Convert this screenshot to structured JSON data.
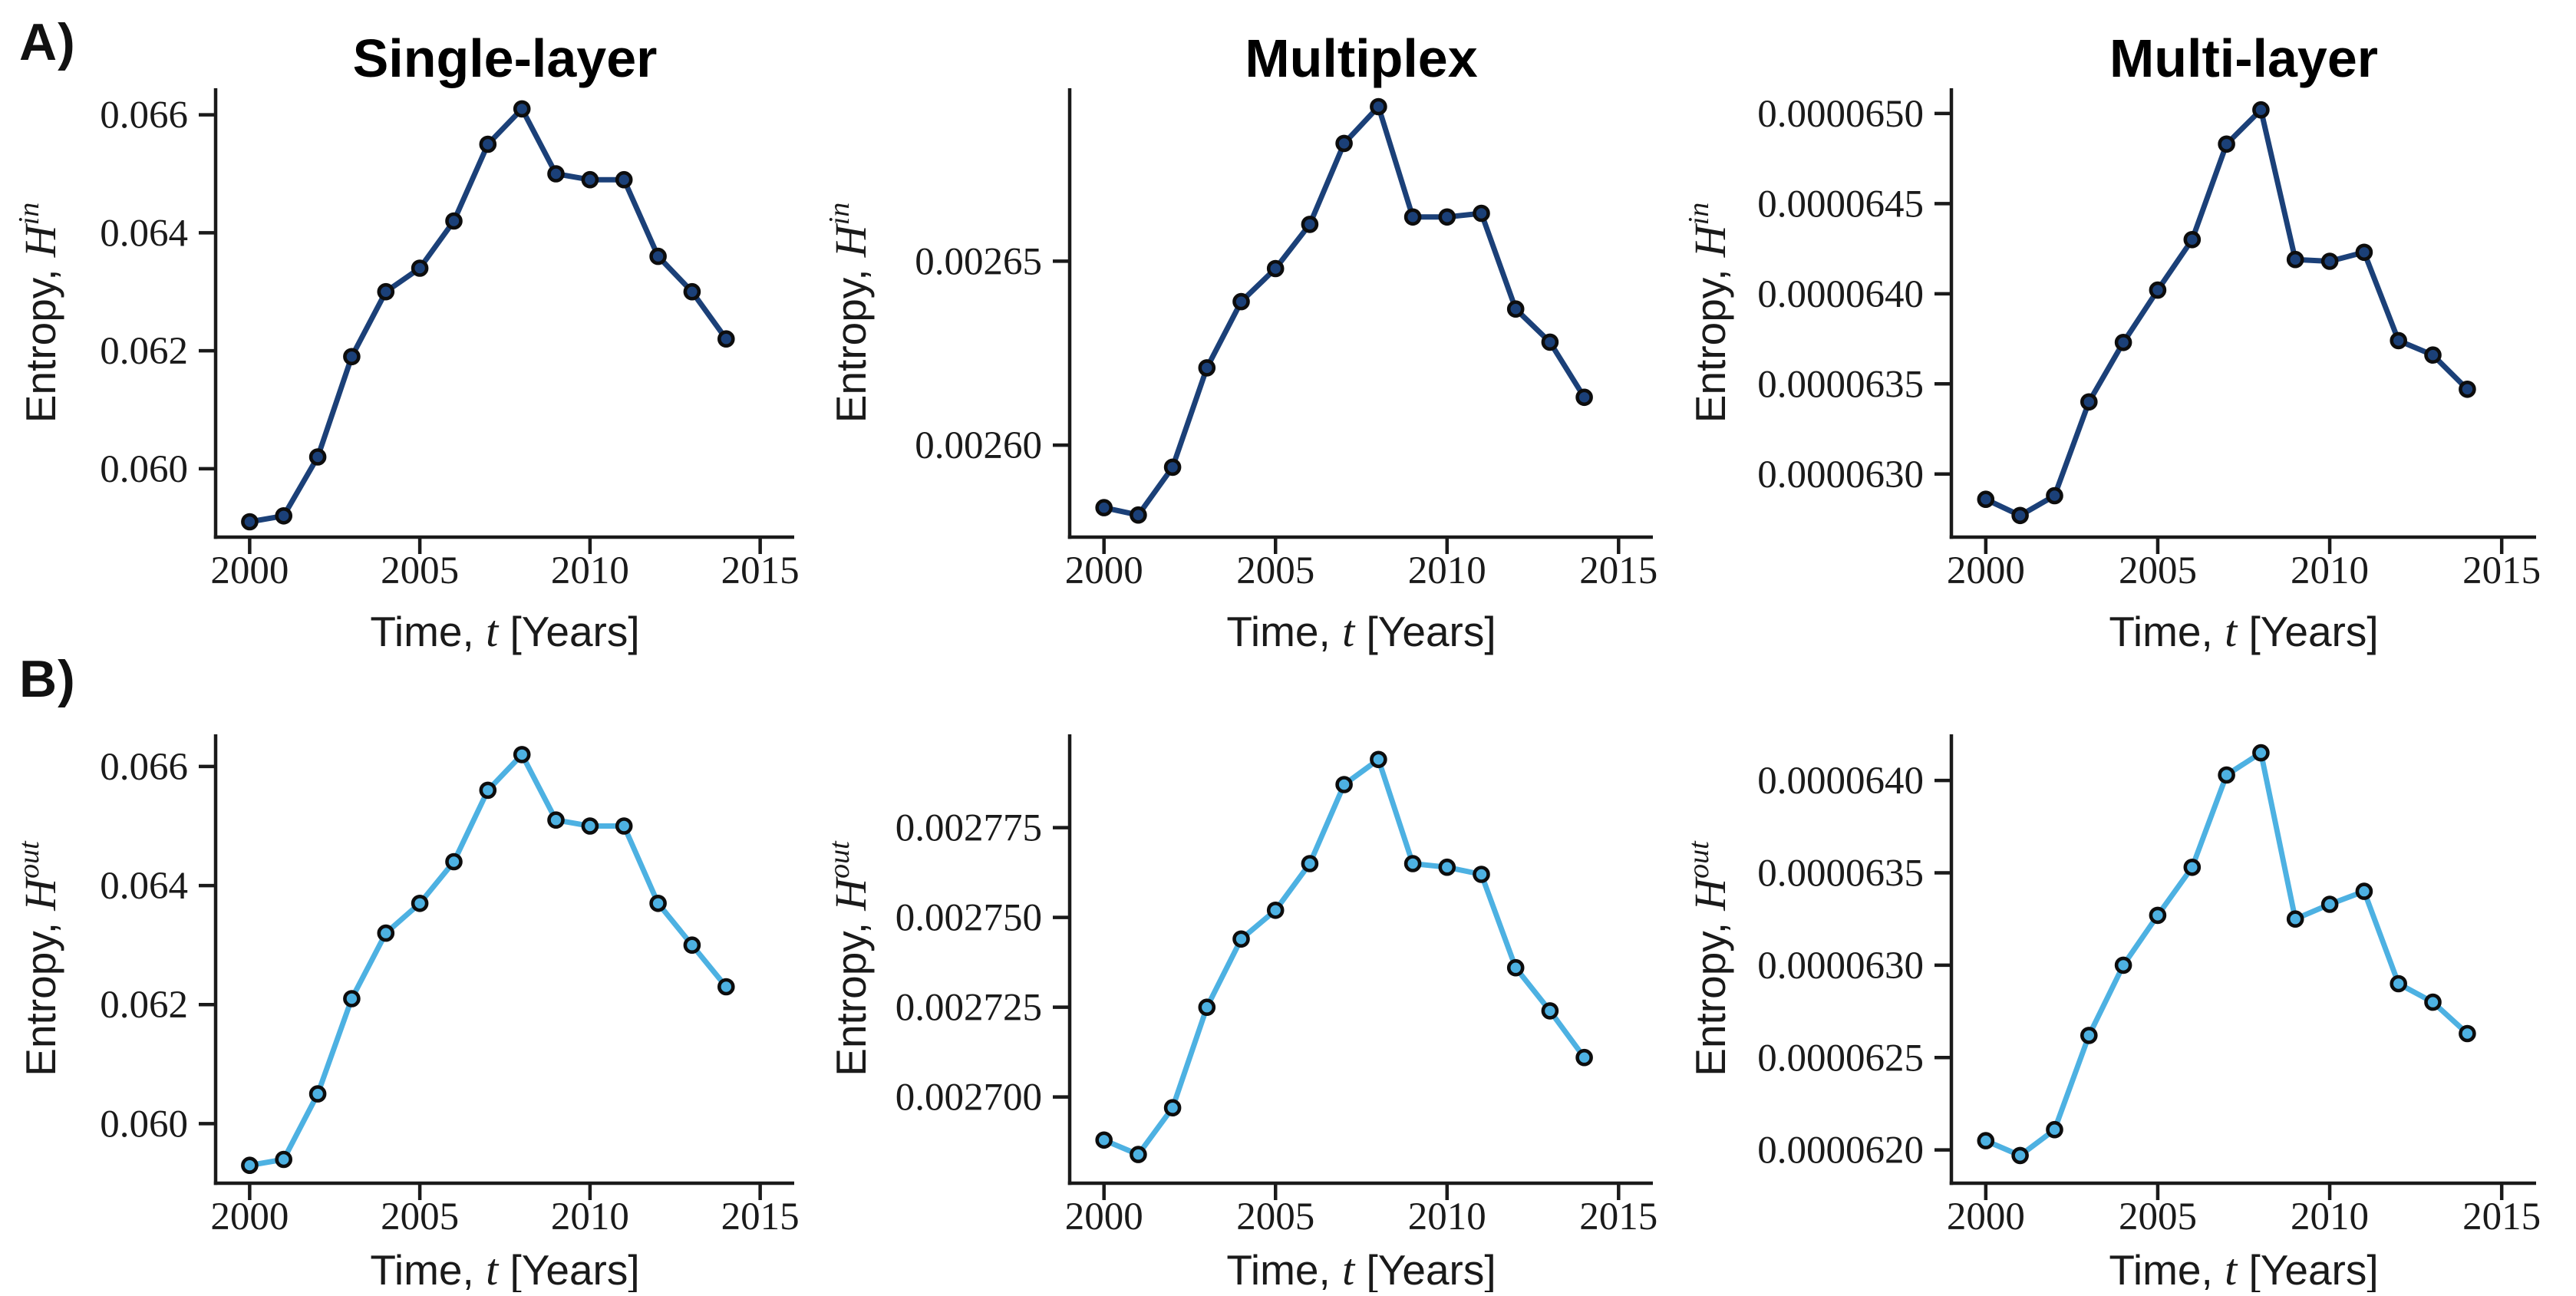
{
  "panel_labels": {
    "a": "A)",
    "b": "B)"
  },
  "colors": {
    "row_a_series": "#1b4078",
    "row_b_series": "#4db1e2",
    "marker_edge": "#0d0d0d",
    "axis": "#1a1a1a",
    "background": "#ffffff",
    "text": "#000000"
  },
  "column_titles": [
    "Single-layer",
    "Multiplex",
    "Multi-layer"
  ],
  "x_axis_label": {
    "prefix": "Time, ",
    "variable": "t",
    "suffix": " [Years]"
  },
  "y_axis_label": {
    "prefix": "Entropy, ",
    "variable": "H",
    "sup_row_a": "in",
    "sup_row_b": "out"
  },
  "chart_data": [
    {
      "id": "single-layer-h-in",
      "type": "line",
      "row": 0,
      "col": 0,
      "title": "Single-layer",
      "ylabel": "Entropy, H^in",
      "xlabel": "Time, t [Years]",
      "legend_position": "none",
      "grid": false,
      "x": [
        2000,
        2001,
        2002,
        2003,
        2004,
        2005,
        2006,
        2007,
        2008,
        2009,
        2010,
        2011,
        2012,
        2013,
        2014
      ],
      "y": [
        0.0591,
        0.0592,
        0.0602,
        0.0619,
        0.063,
        0.0634,
        0.0642,
        0.0655,
        0.0661,
        0.065,
        0.0649,
        0.0649,
        0.0636,
        0.063,
        0.0622
      ],
      "xlim": [
        1999,
        2016
      ],
      "ylim": [
        0.05884,
        0.06645
      ],
      "xticks": [
        "2000",
        "2005",
        "2010",
        "2015"
      ],
      "yticks": [
        {
          "v": 0.06,
          "label": "0.060"
        },
        {
          "v": 0.062,
          "label": "0.062"
        },
        {
          "v": 0.064,
          "label": "0.064"
        },
        {
          "v": 0.066,
          "label": "0.066"
        }
      ]
    },
    {
      "id": "multiplex-h-in",
      "type": "line",
      "row": 0,
      "col": 1,
      "title": "Multiplex",
      "ylabel": "Entropy, H^in",
      "xlabel": "Time, t [Years]",
      "legend_position": "none",
      "grid": false,
      "x": [
        2000,
        2001,
        2002,
        2003,
        2004,
        2005,
        2006,
        2007,
        2008,
        2009,
        2010,
        2011,
        2012,
        2013,
        2014
      ],
      "y": [
        0.002583,
        0.002581,
        0.002594,
        0.002621,
        0.002639,
        0.002648,
        0.00266,
        0.002682,
        0.002692,
        0.002662,
        0.002662,
        0.002663,
        0.002637,
        0.002628,
        0.002613
      ],
      "xlim": [
        1999,
        2016
      ],
      "ylim": [
        0.002575,
        0.002697
      ],
      "xticks": [
        "2000",
        "2005",
        "2010",
        "2015"
      ],
      "yticks": [
        {
          "v": 0.0026,
          "label": "0.00260"
        },
        {
          "v": 0.00265,
          "label": "0.00265"
        }
      ]
    },
    {
      "id": "multi-layer-h-in",
      "type": "line",
      "row": 0,
      "col": 2,
      "title": "Multi-layer",
      "ylabel": "Entropy, H^in",
      "xlabel": "Time, t [Years]",
      "legend_position": "none",
      "grid": false,
      "x": [
        2000,
        2001,
        2002,
        2003,
        2004,
        2005,
        2006,
        2007,
        2008,
        2009,
        2010,
        2011,
        2012,
        2013,
        2014
      ],
      "y": [
        6.286e-05,
        6.277e-05,
        6.288e-05,
        6.34e-05,
        6.373e-05,
        6.402e-05,
        6.43e-05,
        6.483e-05,
        6.502e-05,
        6.419e-05,
        6.418e-05,
        6.423e-05,
        6.374e-05,
        6.366e-05,
        6.347e-05
      ],
      "xlim": [
        1999,
        2016
      ],
      "ylim": [
        6.265e-05,
        6.514e-05
      ],
      "xticks": [
        "2000",
        "2005",
        "2010",
        "2015"
      ],
      "yticks": [
        {
          "v": 6.3e-05,
          "label": "0.0000630"
        },
        {
          "v": 6.35e-05,
          "label": "0.0000635"
        },
        {
          "v": 6.4e-05,
          "label": "0.0000640"
        },
        {
          "v": 6.45e-05,
          "label": "0.0000645"
        },
        {
          "v": 6.5e-05,
          "label": "0.0000650"
        }
      ]
    },
    {
      "id": "single-layer-h-out",
      "type": "line",
      "row": 1,
      "col": 0,
      "title": "Single-layer",
      "ylabel": "Entropy, H^out",
      "xlabel": "Time, t [Years]",
      "legend_position": "none",
      "grid": false,
      "x": [
        2000,
        2001,
        2002,
        2003,
        2004,
        2005,
        2006,
        2007,
        2008,
        2009,
        2010,
        2011,
        2012,
        2013,
        2014
      ],
      "y": [
        0.0593,
        0.0594,
        0.0605,
        0.0621,
        0.0632,
        0.0637,
        0.0644,
        0.0656,
        0.0662,
        0.0651,
        0.065,
        0.065,
        0.0637,
        0.063,
        0.0623
      ],
      "xlim": [
        1999,
        2016
      ],
      "ylim": [
        0.059,
        0.06654
      ],
      "xticks": [
        "2000",
        "2005",
        "2010",
        "2015"
      ],
      "yticks": [
        {
          "v": 0.06,
          "label": "0.060"
        },
        {
          "v": 0.062,
          "label": "0.062"
        },
        {
          "v": 0.064,
          "label": "0.064"
        },
        {
          "v": 0.066,
          "label": "0.066"
        }
      ]
    },
    {
      "id": "multiplex-h-out",
      "type": "line",
      "row": 1,
      "col": 1,
      "title": "Multiplex",
      "ylabel": "Entropy, H^out",
      "xlabel": "Time, t [Years]",
      "legend_position": "none",
      "grid": false,
      "x": [
        2000,
        2001,
        2002,
        2003,
        2004,
        2005,
        2006,
        2007,
        2008,
        2009,
        2010,
        2011,
        2012,
        2013,
        2014
      ],
      "y": [
        0.002688,
        0.002684,
        0.002697,
        0.002725,
        0.002744,
        0.002752,
        0.002765,
        0.002787,
        0.002794,
        0.002765,
        0.002764,
        0.002762,
        0.002736,
        0.002724,
        0.002711
      ],
      "xlim": [
        1999,
        2016
      ],
      "ylim": [
        0.002676,
        0.002801
      ],
      "xticks": [
        "2000",
        "2005",
        "2010",
        "2015"
      ],
      "yticks": [
        {
          "v": 0.0027,
          "label": "0.002700"
        },
        {
          "v": 0.002725,
          "label": "0.002725"
        },
        {
          "v": 0.00275,
          "label": "0.002750"
        },
        {
          "v": 0.002775,
          "label": "0.002775"
        }
      ]
    },
    {
      "id": "multi-layer-h-out",
      "type": "line",
      "row": 1,
      "col": 2,
      "title": "Multi-layer",
      "ylabel": "Entropy, H^out",
      "xlabel": "Time, t [Years]",
      "legend_position": "none",
      "grid": false,
      "x": [
        2000,
        2001,
        2002,
        2003,
        2004,
        2005,
        2006,
        2007,
        2008,
        2009,
        2010,
        2011,
        2012,
        2013,
        2014
      ],
      "y": [
        6.205e-05,
        6.197e-05,
        6.211e-05,
        6.262e-05,
        6.3e-05,
        6.327e-05,
        6.353e-05,
        6.403e-05,
        6.415e-05,
        6.325e-05,
        6.333e-05,
        6.34e-05,
        6.29e-05,
        6.28e-05,
        6.263e-05
      ],
      "xlim": [
        1999,
        2016
      ],
      "ylim": [
        6.182e-05,
        6.425e-05
      ],
      "xticks": [
        "2000",
        "2005",
        "2010",
        "2015"
      ],
      "yticks": [
        {
          "v": 6.2e-05,
          "label": "0.0000620"
        },
        {
          "v": 6.25e-05,
          "label": "0.0000625"
        },
        {
          "v": 6.3e-05,
          "label": "0.0000630"
        },
        {
          "v": 6.35e-05,
          "label": "0.0000635"
        },
        {
          "v": 6.4e-05,
          "label": "0.0000640"
        }
      ]
    }
  ]
}
